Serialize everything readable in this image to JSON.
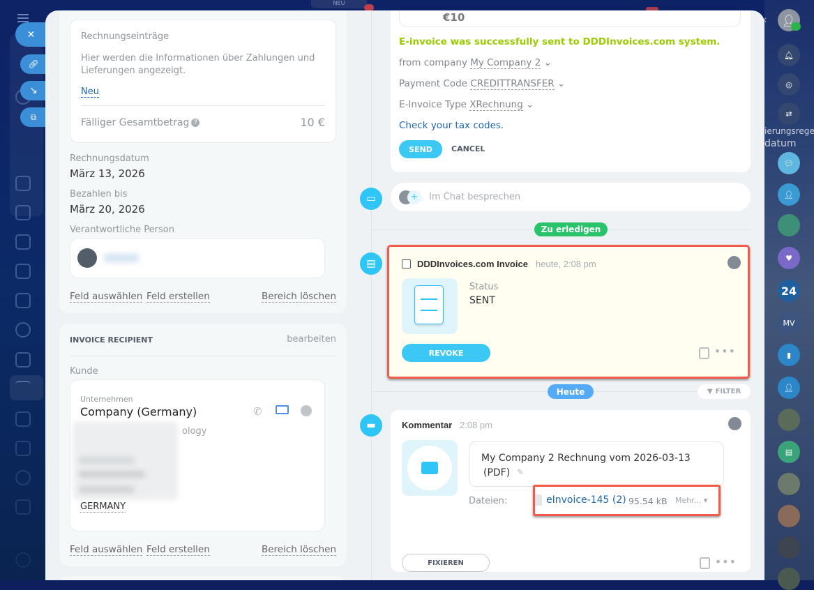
{
  "colors": {
    "accent": "#3bc8f5",
    "success": "#9acd32",
    "link": "#2067b0",
    "highlight": "#f25a4a",
    "todo": "#29c36a",
    "today": "#55aaf5"
  },
  "top": {
    "new_badge": "NEU"
  },
  "left_panel": {
    "entries_card": {
      "title": "Rechnungseinträge",
      "description": "Hier werden die Informationen über Zahlungen und Lieferungen angezeigt.",
      "new_link": "Neu",
      "total_label": "Fälliger Gesamtbetrag",
      "total_value": "10 €"
    },
    "invoice_date": {
      "label": "Rechnungsdatum",
      "value": "März 13, 2026"
    },
    "due_date": {
      "label": "Bezahlen bis",
      "value": "März 20, 2026"
    },
    "responsible": {
      "label": "Verantwortliche Person"
    },
    "actions": {
      "select_field": "Feld auswählen",
      "create_field": "Feld erstellen",
      "delete_section": "Bereich löschen"
    },
    "recipient": {
      "title": "INVOICE RECIPIENT",
      "edit": "bearbeiten",
      "customer_label": "Kunde",
      "company_type": "Unternehmen",
      "company_name": "Company (Germany)",
      "partial_line": "ology",
      "country": "GERMANY"
    }
  },
  "einvoice_form": {
    "amount": "€10",
    "success": "E-invoice was successfully sent to DDDInvoices.com system.",
    "from_company_label": "from company",
    "from_company_value": "My Company 2",
    "payment_code_label": "Payment Code",
    "payment_code_value": "CREDITTRANSFER",
    "type_label": "E-Invoice Type",
    "type_value": "XRechnung",
    "tax_link": "Check your tax codes.",
    "send": "SEND",
    "cancel": "CANCEL"
  },
  "chat": {
    "placeholder": "Im Chat besprechen"
  },
  "dividers": {
    "todo": "Zu erledigen",
    "today": "Heute",
    "filter": "FILTER"
  },
  "invoice_activity": {
    "title": "DDDInvoices.com Invoice",
    "time": "heute, 2:08 pm",
    "status_label": "Status",
    "status_value": "SENT",
    "revoke": "REVOKE"
  },
  "comment": {
    "title": "Kommentar",
    "time": "2:08 pm",
    "text": "My Company 2 Rechnung vom 2026-03-13",
    "text2": "(PDF)",
    "files_label": "Dateien:",
    "file_name": "eInvoice-145 (2)",
    "file_size": "95.54 kB",
    "more": "Mehr...",
    "pin": "FIXIEREN"
  },
  "right_sidebar": {
    "bleed_1": "ierungsrege",
    "bleed_2": "datum",
    "counter": "24",
    "initials": "MV"
  }
}
